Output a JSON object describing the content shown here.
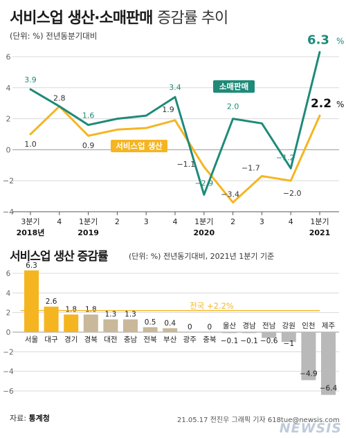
{
  "header": {
    "title_bold": "서비스업 생산·소매판매",
    "title_light": "증감률 추이",
    "unit": "(단위: %) 전년동분기대비"
  },
  "colors": {
    "retail": "#1e8a78",
    "service": "#f5b521",
    "grid": "#d8d8d8",
    "bar_gold": "#f5b521",
    "bar_tan": "#c9b89a",
    "bar_grey": "#b9b9b9",
    "ref_line": "#f5b521"
  },
  "chart_data": [
    {
      "type": "line",
      "ylim": [
        -4,
        6
      ],
      "y_ticks": [
        "6",
        "4",
        "2",
        "0",
        "-2",
        "-4"
      ],
      "categories": [
        "3분기",
        "4",
        "1분기",
        "2",
        "3",
        "4",
        "1분기",
        "2",
        "3",
        "4",
        "1분기"
      ],
      "years": [
        {
          "label": "2018년",
          "index": 0
        },
        {
          "label": "2019",
          "index": 2
        },
        {
          "label": "2020",
          "index": 6
        },
        {
          "label": "2021",
          "index": 10
        }
      ],
      "series": [
        {
          "name": "소매판매",
          "values": [
            3.9,
            2.8,
            1.6,
            2.0,
            2.2,
            3.4,
            -2.9,
            2.0,
            1.7,
            -1.2,
            6.3
          ],
          "labels": [
            "3.9",
            "",
            "1.6",
            "",
            "",
            "3.4",
            "-2.9",
            "2.0",
            "",
            "-1.2",
            "6.3"
          ]
        },
        {
          "name": "서비스업 생산",
          "values": [
            1.0,
            2.8,
            0.9,
            1.3,
            1.4,
            1.9,
            -1.1,
            -3.4,
            -1.7,
            -2.0,
            2.2
          ],
          "labels": [
            "1.0",
            "2.8",
            "0.9",
            "",
            "",
            "1.9",
            "-1.1",
            "-3.4",
            "-1.7",
            "-2.0",
            "2.2"
          ]
        }
      ]
    },
    {
      "type": "bar",
      "title": "서비스업 생산 증감률",
      "unit": "(단위: %) 전년동기대비, 2021년 1분기 기준",
      "ylim": [
        -6,
        6
      ],
      "y_ticks": [
        "6",
        "4",
        "2",
        "0",
        "-2",
        "-4",
        "-6"
      ],
      "reference": {
        "label": "전국 +2.2%",
        "value": 2.2
      },
      "categories": [
        "서울",
        "대구",
        "경기",
        "경북",
        "대전",
        "충남",
        "전북",
        "부산",
        "광주",
        "충북",
        "울산",
        "경남",
        "전남",
        "강원",
        "인천",
        "제주"
      ],
      "values": [
        6.3,
        2.6,
        1.8,
        1.8,
        1.3,
        1.3,
        0.5,
        0.4,
        0,
        0,
        -0.1,
        -0.1,
        -0.6,
        -1,
        -4.9,
        -6.4
      ],
      "value_labels": [
        "6.3",
        "2.6",
        "1.8",
        "1.8",
        "1.3",
        "1.3",
        "0.5",
        "0.4",
        "0",
        "0",
        "-0.1",
        "-0.1",
        "-0.6",
        "-1",
        "-4.9",
        "-6.4"
      ]
    }
  ],
  "footer": {
    "source_label": "자료:",
    "source": "통계청",
    "credit": "21.05.17 전진우 그래픽 기자 618tue@newsis.com",
    "watermark": "NEWSIS"
  }
}
